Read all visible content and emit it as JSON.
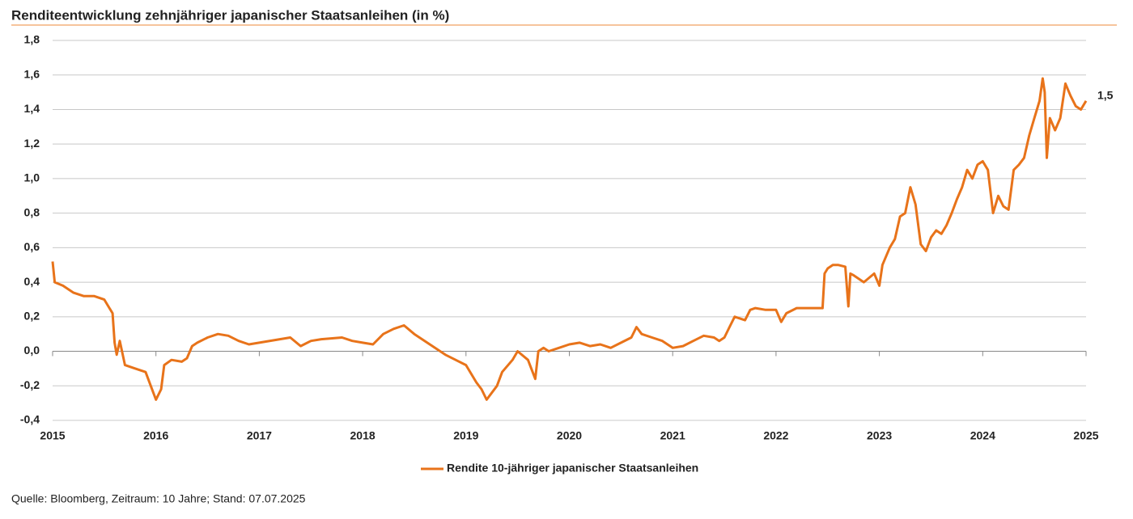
{
  "chart_data": {
    "type": "line",
    "title": "Renditeentwicklung zehnjähriger japanischer Staatsanleihen (in %)",
    "source": "Quelle: Bloomberg, Zeitraum: 10 Jahre; Stand: 07.07.2025",
    "xlim": [
      2015,
      2025
    ],
    "xticks": [
      2015,
      2016,
      2017,
      2018,
      2019,
      2020,
      2021,
      2022,
      2023,
      2024,
      2025
    ],
    "ylim": [
      -0.4,
      1.8
    ],
    "yticks": [
      {
        "value": -0.4,
        "label": "-0,4"
      },
      {
        "value": -0.2,
        "label": "-0,2"
      },
      {
        "value": 0,
        "label": "0,0"
      },
      {
        "value": 0.2,
        "label": "0,2"
      },
      {
        "value": 0.4,
        "label": "0,4"
      },
      {
        "value": 0.6,
        "label": "0,6"
      },
      {
        "value": 0.8,
        "label": "0,8"
      },
      {
        "value": 1.0,
        "label": "1,0"
      },
      {
        "value": 1.2,
        "label": "1,2"
      },
      {
        "value": 1.4,
        "label": "1,4"
      },
      {
        "value": 1.6,
        "label": "1,6"
      },
      {
        "value": 1.8,
        "label": "1,8"
      }
    ],
    "grid": true,
    "legend": "bottom",
    "annotations": [
      {
        "text": "1,5"
      }
    ],
    "x": [
      2015.0,
      2015.02,
      2015.1,
      2015.2,
      2015.3,
      2015.4,
      2015.5,
      2015.55,
      2015.58,
      2015.6,
      2015.62,
      2015.65,
      2015.7,
      2015.8,
      2015.9,
      2015.95,
      2016.0,
      2016.05,
      2016.08,
      2016.15,
      2016.25,
      2016.3,
      2016.35,
      2016.4,
      2016.5,
      2016.6,
      2016.7,
      2016.8,
      2016.9,
      2017.0,
      2017.2,
      2017.3,
      2017.4,
      2017.5,
      2017.6,
      2017.8,
      2017.9,
      2018.0,
      2018.1,
      2018.2,
      2018.3,
      2018.4,
      2018.5,
      2018.6,
      2018.7,
      2018.8,
      2018.9,
      2019.0,
      2019.1,
      2019.15,
      2019.2,
      2019.3,
      2019.35,
      2019.45,
      2019.5,
      2019.6,
      2019.67,
      2019.7,
      2019.75,
      2019.8,
      2019.9,
      2020.0,
      2020.1,
      2020.2,
      2020.3,
      2020.4,
      2020.5,
      2020.6,
      2020.65,
      2020.7,
      2020.8,
      2020.9,
      2021.0,
      2021.1,
      2021.2,
      2021.3,
      2021.4,
      2021.45,
      2021.5,
      2021.55,
      2021.6,
      2021.7,
      2021.75,
      2021.8,
      2021.9,
      2022.0,
      2022.05,
      2022.1,
      2022.2,
      2022.3,
      2022.4,
      2022.45,
      2022.47,
      2022.5,
      2022.55,
      2022.6,
      2022.67,
      2022.7,
      2022.72,
      2022.75,
      2022.85,
      2022.95,
      2023.0,
      2023.03,
      2023.1,
      2023.15,
      2023.2,
      2023.25,
      2023.3,
      2023.35,
      2023.4,
      2023.45,
      2023.5,
      2023.55,
      2023.6,
      2023.65,
      2023.7,
      2023.75,
      2023.8,
      2023.85,
      2023.9,
      2023.95,
      2024.0,
      2024.05,
      2024.1,
      2024.15,
      2024.2,
      2024.25,
      2024.3,
      2024.35,
      2024.4,
      2024.45,
      2024.5,
      2024.55,
      2024.58,
      2024.6,
      2024.62,
      2024.65,
      2024.7,
      2024.75,
      2024.8,
      2024.85,
      2024.9,
      2024.95,
      2025.0
    ],
    "series": [
      {
        "name": "Rendite 10-jähriger japanischer Staatsanleihen",
        "color": "#e8731a",
        "values": [
          0.52,
          0.4,
          0.38,
          0.34,
          0.32,
          0.32,
          0.3,
          0.25,
          0.22,
          0.05,
          -0.02,
          0.06,
          -0.08,
          -0.1,
          -0.12,
          -0.2,
          -0.28,
          -0.22,
          -0.08,
          -0.05,
          -0.06,
          -0.04,
          0.03,
          0.05,
          0.08,
          0.1,
          0.09,
          0.06,
          0.04,
          0.05,
          0.07,
          0.08,
          0.03,
          0.06,
          0.07,
          0.08,
          0.06,
          0.05,
          0.04,
          0.1,
          0.13,
          0.15,
          0.1,
          0.06,
          0.02,
          -0.02,
          -0.05,
          -0.08,
          -0.18,
          -0.22,
          -0.28,
          -0.2,
          -0.12,
          -0.05,
          0.0,
          -0.05,
          -0.16,
          0.0,
          0.02,
          0.0,
          0.02,
          0.04,
          0.05,
          0.03,
          0.04,
          0.02,
          0.05,
          0.08,
          0.14,
          0.1,
          0.08,
          0.06,
          0.02,
          0.03,
          0.06,
          0.09,
          0.08,
          0.06,
          0.08,
          0.14,
          0.2,
          0.18,
          0.24,
          0.25,
          0.24,
          0.24,
          0.17,
          0.22,
          0.25,
          0.25,
          0.25,
          0.25,
          0.45,
          0.48,
          0.5,
          0.5,
          0.49,
          0.26,
          0.45,
          0.44,
          0.4,
          0.45,
          0.38,
          0.5,
          0.6,
          0.65,
          0.78,
          0.8,
          0.95,
          0.85,
          0.62,
          0.58,
          0.66,
          0.7,
          0.68,
          0.73,
          0.8,
          0.88,
          0.95,
          1.05,
          1.0,
          1.08,
          1.1,
          1.05,
          0.8,
          0.9,
          0.84,
          0.82,
          1.05,
          1.08,
          1.12,
          1.25,
          1.35,
          1.45,
          1.58,
          1.5,
          1.12,
          1.35,
          1.28,
          1.35,
          1.55,
          1.48,
          1.42,
          1.4,
          1.45
        ]
      }
    ]
  }
}
